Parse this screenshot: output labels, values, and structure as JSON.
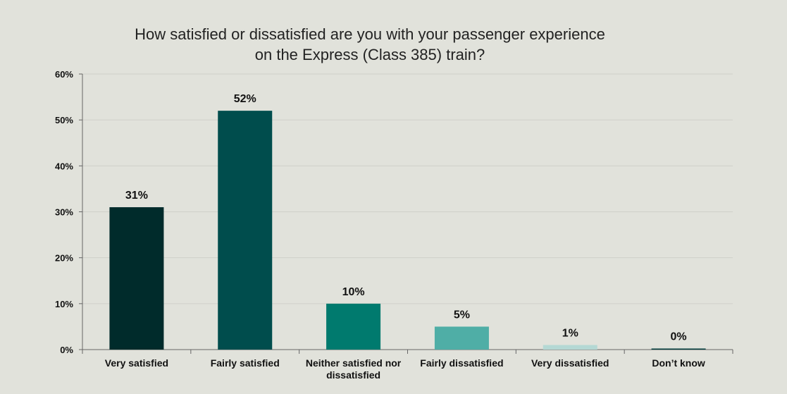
{
  "chart_data": {
    "type": "bar",
    "title": [
      "How satisfied or dissatisfied are you with your passenger experience",
      "on the Express (Class 385) train?"
    ],
    "categories": [
      [
        "Very satisfied"
      ],
      [
        "Fairly satisfied"
      ],
      [
        "Neither satisfied nor",
        "dissatisfied"
      ],
      [
        "Fairly dissatisfied"
      ],
      [
        "Very dissatisfied"
      ],
      [
        "Don’t know"
      ]
    ],
    "values": [
      31,
      52,
      10,
      5,
      1,
      0
    ],
    "data_labels": [
      "31%",
      "52%",
      "10%",
      "5%",
      "1%",
      "0%"
    ],
    "bar_colors": [
      "#002b2b",
      "#004d4d",
      "#007a6e",
      "#4faea6",
      "#b4d8d4",
      "#003b3b"
    ],
    "ylim": [
      0,
      60
    ],
    "y_ticks": [
      0,
      10,
      20,
      30,
      40,
      50,
      60
    ],
    "y_tick_labels": [
      "0%",
      "10%",
      "20%",
      "30%",
      "40%",
      "50%",
      "60%"
    ],
    "grid": true,
    "legend": "none",
    "xlabel": "",
    "ylabel": ""
  }
}
